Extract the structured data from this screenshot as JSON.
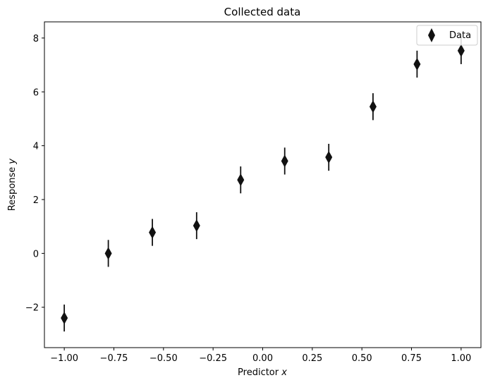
{
  "chart_data": {
    "type": "scatter",
    "title": "Collected data",
    "xlabel": "Predictor",
    "xlabel_var": "x",
    "ylabel": "Response",
    "ylabel_var": "y",
    "xlim": [
      -1.1,
      1.1
    ],
    "ylim": [
      -3.5,
      8.6
    ],
    "xticks": [
      -1.0,
      -0.75,
      -0.5,
      -0.25,
      0.0,
      0.25,
      0.5,
      0.75,
      1.0
    ],
    "xtick_labels": [
      "−1.00",
      "−0.75",
      "−0.50",
      "−0.25",
      "0.00",
      "0.25",
      "0.50",
      "0.75",
      "1.00"
    ],
    "yticks": [
      -2,
      0,
      2,
      4,
      6,
      8
    ],
    "ytick_labels": [
      "−2",
      "0",
      "2",
      "4",
      "6",
      "8"
    ],
    "grid": false,
    "legend_position": "top-right",
    "series": [
      {
        "name": "Data",
        "marker": "diamond",
        "color": "#111111",
        "x": [
          -1.0,
          -0.778,
          -0.556,
          -0.333,
          -0.111,
          0.111,
          0.333,
          0.556,
          0.778,
          1.0
        ],
        "y": [
          -2.4,
          0.0,
          0.78,
          1.03,
          2.73,
          3.43,
          3.57,
          5.45,
          7.03,
          7.53
        ],
        "yerr": [
          0.5,
          0.5,
          0.5,
          0.5,
          0.5,
          0.5,
          0.5,
          0.5,
          0.5,
          0.5
        ]
      }
    ]
  }
}
